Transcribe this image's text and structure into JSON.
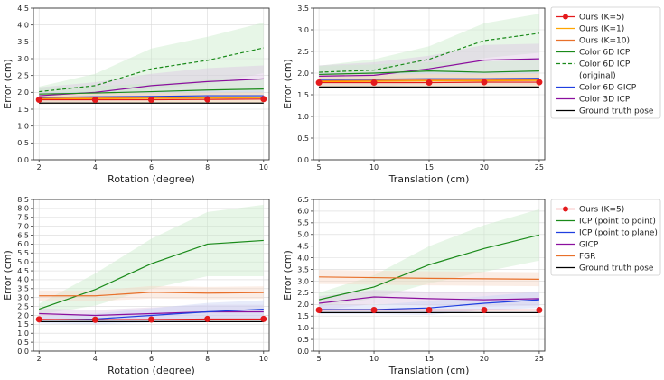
{
  "figure_colors": {
    "red": "#e41a1c",
    "yellow": "#ffa500",
    "orange": "#e8702a",
    "green": "#1a8a1a",
    "blue": "#1f3fe0",
    "purple": "#8b0f9e",
    "black": "#000000",
    "band_green": "#c9ecc9",
    "band_purple": "#dcc5e2",
    "band_blue": "#c9d2f5",
    "band_orange": "#f6d8c6"
  },
  "legends": [
    {
      "name": "legend-color-methods",
      "entries": [
        {
          "label": "Ours (K=5)",
          "color": "#e41a1c",
          "style": "solid",
          "marker": "dot"
        },
        {
          "label": "Ours (K=1)",
          "color": "#ffa500",
          "style": "solid"
        },
        {
          "label": "Ours (K=10)",
          "color": "#e8702a",
          "style": "solid"
        },
        {
          "label": "Color 6D ICP",
          "color": "#1a8a1a",
          "style": "solid"
        },
        {
          "label": "Color 6D ICP",
          "label_line2": "(original)",
          "color": "#1a8a1a",
          "style": "dashed"
        },
        {
          "label": "Color 6D GICP",
          "color": "#1f3fe0",
          "style": "solid"
        },
        {
          "label": "Color 3D ICP",
          "color": "#8b0f9e",
          "style": "solid"
        },
        {
          "label": "Ground truth pose",
          "color": "#000000",
          "style": "solid"
        }
      ]
    },
    {
      "name": "legend-geometric-methods",
      "entries": [
        {
          "label": "Ours (K=5)",
          "color": "#e41a1c",
          "style": "solid",
          "marker": "dot"
        },
        {
          "label": "ICP (point to point)",
          "color": "#1a8a1a",
          "style": "solid"
        },
        {
          "label": "ICP (point to plane)",
          "color": "#1f3fe0",
          "style": "solid"
        },
        {
          "label": "GICP",
          "color": "#8b0f9e",
          "style": "solid"
        },
        {
          "label": "FGR",
          "color": "#e8702a",
          "style": "solid"
        },
        {
          "label": "Ground truth pose",
          "color": "#000000",
          "style": "solid"
        }
      ]
    }
  ],
  "chart_data": [
    {
      "type": "line",
      "name": "top-left",
      "xlabel": "Rotation (degree)",
      "ylabel": "Error (cm)",
      "x": [
        2,
        4,
        6,
        8,
        10
      ],
      "xticks": [
        2,
        4,
        6,
        8,
        10
      ],
      "xlim": [
        1.8,
        10.2
      ],
      "ylim": [
        0,
        4.5
      ],
      "ystep": 0.5,
      "ydecimals": 1,
      "grid": true,
      "series": [
        {
          "name": "Color 6D ICP (original)",
          "color": "#1a8a1a",
          "style": "dashed",
          "values": [
            2.02,
            2.2,
            2.7,
            2.95,
            3.32
          ],
          "band": [
            0.15,
            0.35,
            0.6,
            0.7,
            0.75
          ]
        },
        {
          "name": "Color 3D ICP",
          "color": "#8b0f9e",
          "style": "solid",
          "values": [
            1.9,
            2.0,
            2.2,
            2.32,
            2.4
          ],
          "band": [
            0.25,
            0.3,
            0.35,
            0.4,
            0.4
          ]
        },
        {
          "name": "Color 6D ICP",
          "color": "#1a8a1a",
          "style": "solid",
          "values": [
            1.95,
            1.98,
            2.02,
            2.07,
            2.1
          ],
          "band": [
            0.2,
            0.2,
            0.25,
            0.3,
            0.3
          ]
        },
        {
          "name": "Color 6D GICP",
          "color": "#1f3fe0",
          "style": "solid",
          "values": [
            1.85,
            1.87,
            1.88,
            1.9,
            1.9
          ],
          "band": [
            0.15,
            0.15,
            0.15,
            0.15,
            0.15
          ]
        },
        {
          "name": "Ours (K=10)",
          "color": "#e8702a",
          "style": "solid",
          "values": [
            1.82,
            1.83,
            1.84,
            1.85,
            1.85
          ],
          "band": [
            0.15,
            0.15,
            0.15,
            0.15,
            0.15
          ]
        },
        {
          "name": "Ours (K=1)",
          "color": "#ffa500",
          "style": "solid",
          "values": [
            1.8,
            1.81,
            1.82,
            1.83,
            1.84
          ],
          "band": [
            0.15,
            0.15,
            0.15,
            0.15,
            0.15
          ]
        },
        {
          "name": "Ground truth pose",
          "color": "#000000",
          "style": "solid",
          "values": [
            1.68,
            1.68,
            1.68,
            1.68,
            1.68
          ]
        },
        {
          "name": "Ours (K=5)",
          "color": "#e41a1c",
          "style": "solid",
          "marker": "dot",
          "values": [
            1.78,
            1.78,
            1.78,
            1.79,
            1.8
          ]
        }
      ]
    },
    {
      "type": "line",
      "name": "top-right",
      "xlabel": "Translation (cm)",
      "ylabel": "Error (cm)",
      "x": [
        5,
        10,
        15,
        20,
        25
      ],
      "xticks": [
        5,
        10,
        15,
        20,
        25
      ],
      "xlim": [
        4.5,
        25.5
      ],
      "ylim": [
        0,
        3.5
      ],
      "ystep": 0.5,
      "ydecimals": 1,
      "grid": true,
      "series": [
        {
          "name": "Color 6D ICP (original)",
          "color": "#1a8a1a",
          "style": "dashed",
          "values": [
            2.02,
            2.07,
            2.32,
            2.75,
            2.92
          ],
          "band": [
            0.15,
            0.25,
            0.3,
            0.4,
            0.45
          ]
        },
        {
          "name": "Color 3D ICP",
          "color": "#8b0f9e",
          "style": "solid",
          "values": [
            1.93,
            1.95,
            2.1,
            2.3,
            2.33
          ],
          "band": [
            0.25,
            0.3,
            0.3,
            0.35,
            0.35
          ]
        },
        {
          "name": "Color 6D ICP",
          "color": "#1a8a1a",
          "style": "solid",
          "values": [
            1.97,
            2.0,
            2.05,
            2.02,
            2.05
          ],
          "band": [
            0.2,
            0.2,
            0.2,
            0.25,
            0.25
          ]
        },
        {
          "name": "Color 6D GICP",
          "color": "#1f3fe0",
          "style": "solid",
          "values": [
            1.85,
            1.86,
            1.87,
            1.87,
            1.88
          ],
          "band": [
            0.15,
            0.15,
            0.15,
            0.15,
            0.15
          ]
        },
        {
          "name": "Ours (K=10)",
          "color": "#e8702a",
          "style": "solid",
          "values": [
            1.82,
            1.83,
            1.84,
            1.84,
            1.85
          ],
          "band": [
            0.15,
            0.15,
            0.15,
            0.15,
            0.15
          ]
        },
        {
          "name": "Ours (K=1)",
          "color": "#ffa500",
          "style": "solid",
          "values": [
            1.8,
            1.81,
            1.82,
            1.82,
            1.83
          ],
          "band": [
            0.15,
            0.15,
            0.15,
            0.15,
            0.15
          ]
        },
        {
          "name": "Ground truth pose",
          "color": "#000000",
          "style": "solid",
          "values": [
            1.68,
            1.68,
            1.68,
            1.68,
            1.68
          ]
        },
        {
          "name": "Ours (K=5)",
          "color": "#e41a1c",
          "style": "solid",
          "marker": "dot",
          "values": [
            1.78,
            1.78,
            1.78,
            1.79,
            1.79
          ]
        }
      ]
    },
    {
      "type": "line",
      "name": "bottom-left",
      "xlabel": "Rotation (degree)",
      "ylabel": "Error (cm)",
      "x": [
        2,
        4,
        6,
        8,
        10
      ],
      "xticks": [
        2,
        4,
        6,
        8,
        10
      ],
      "xlim": [
        1.8,
        10.2
      ],
      "ylim": [
        0,
        8.5
      ],
      "ystep": 0.5,
      "ydecimals": 1,
      "grid": true,
      "series": [
        {
          "name": "ICP (point to point)",
          "color": "#1a8a1a",
          "style": "solid",
          "values": [
            2.35,
            3.45,
            4.9,
            6.0,
            6.2
          ],
          "band": [
            0.3,
            0.9,
            1.4,
            1.8,
            2.0
          ]
        },
        {
          "name": "FGR",
          "color": "#e8702a",
          "style": "solid",
          "values": [
            3.1,
            3.1,
            3.3,
            3.25,
            3.28
          ],
          "band": [
            0.3,
            0.3,
            0.35,
            0.35,
            0.35
          ]
        },
        {
          "name": "GICP",
          "color": "#8b0f9e",
          "style": "solid",
          "values": [
            2.1,
            2.0,
            2.1,
            2.2,
            2.2
          ],
          "band": [
            0.3,
            0.3,
            0.35,
            0.4,
            0.4
          ]
        },
        {
          "name": "ICP (point to plane)",
          "color": "#1f3fe0",
          "style": "solid",
          "values": [
            1.75,
            1.8,
            2.0,
            2.2,
            2.35
          ],
          "band": [
            0.2,
            0.3,
            0.4,
            0.5,
            0.5
          ]
        },
        {
          "name": "Ground truth pose",
          "color": "#000000",
          "style": "solid",
          "values": [
            1.65,
            1.65,
            1.65,
            1.65,
            1.65
          ]
        },
        {
          "name": "Ours (K=5)",
          "color": "#e41a1c",
          "style": "solid",
          "marker": "dot",
          "values": [
            1.78,
            1.76,
            1.77,
            1.8,
            1.8
          ]
        }
      ]
    },
    {
      "type": "line",
      "name": "bottom-right",
      "xlabel": "Translation (cm)",
      "ylabel": "Error (cm)",
      "x": [
        5,
        10,
        15,
        20,
        25
      ],
      "xticks": [
        5,
        10,
        15,
        20,
        25
      ],
      "xlim": [
        4.5,
        25.5
      ],
      "ylim": [
        0,
        6.5
      ],
      "ystep": 0.5,
      "ydecimals": 1,
      "grid": true,
      "series": [
        {
          "name": "ICP (point to point)",
          "color": "#1a8a1a",
          "style": "solid",
          "values": [
            2.2,
            2.75,
            3.7,
            4.4,
            4.98
          ],
          "band": [
            0.3,
            0.5,
            0.8,
            1.0,
            1.1
          ]
        },
        {
          "name": "FGR",
          "color": "#e8702a",
          "style": "solid",
          "values": [
            3.18,
            3.15,
            3.12,
            3.1,
            3.08
          ],
          "band": [
            0.3,
            0.3,
            0.3,
            0.3,
            0.3
          ]
        },
        {
          "name": "GICP",
          "color": "#8b0f9e",
          "style": "solid",
          "values": [
            2.05,
            2.32,
            2.25,
            2.2,
            2.25
          ],
          "band": [
            0.3,
            0.3,
            0.3,
            0.3,
            0.3
          ]
        },
        {
          "name": "ICP (point to plane)",
          "color": "#1f3fe0",
          "style": "solid",
          "values": [
            1.78,
            1.78,
            1.85,
            2.05,
            2.2
          ],
          "band": [
            0.2,
            0.2,
            0.3,
            0.3,
            0.35
          ]
        },
        {
          "name": "Ground truth pose",
          "color": "#000000",
          "style": "solid",
          "values": [
            1.65,
            1.65,
            1.65,
            1.65,
            1.65
          ]
        },
        {
          "name": "Ours (K=5)",
          "color": "#e41a1c",
          "style": "solid",
          "marker": "dot",
          "values": [
            1.76,
            1.76,
            1.76,
            1.76,
            1.76
          ]
        }
      ]
    }
  ]
}
